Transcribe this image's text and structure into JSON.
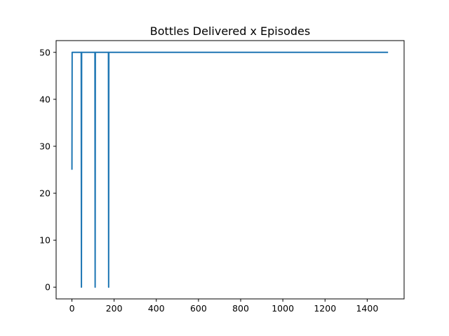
{
  "chart_data": {
    "type": "line",
    "title": "Bottles Delivered x Episodes",
    "xlabel": "",
    "ylabel": "",
    "xlim": [
      -75,
      1575
    ],
    "ylim": [
      -2.5,
      52.5
    ],
    "x_ticks": [
      0,
      200,
      400,
      600,
      800,
      1000,
      1200,
      1400
    ],
    "y_ticks": [
      0,
      10,
      20,
      30,
      40,
      50
    ],
    "grid": false,
    "legend": "none",
    "series": [
      {
        "color": "#1f77b4",
        "points": [
          [
            0,
            25
          ],
          [
            1,
            50
          ],
          [
            44,
            50
          ],
          [
            45,
            0
          ],
          [
            46,
            50
          ],
          [
            109,
            50
          ],
          [
            110,
            0
          ],
          [
            111,
            50
          ],
          [
            173,
            50
          ],
          [
            174,
            0
          ],
          [
            175,
            50
          ],
          [
            1499,
            50
          ]
        ]
      }
    ]
  }
}
